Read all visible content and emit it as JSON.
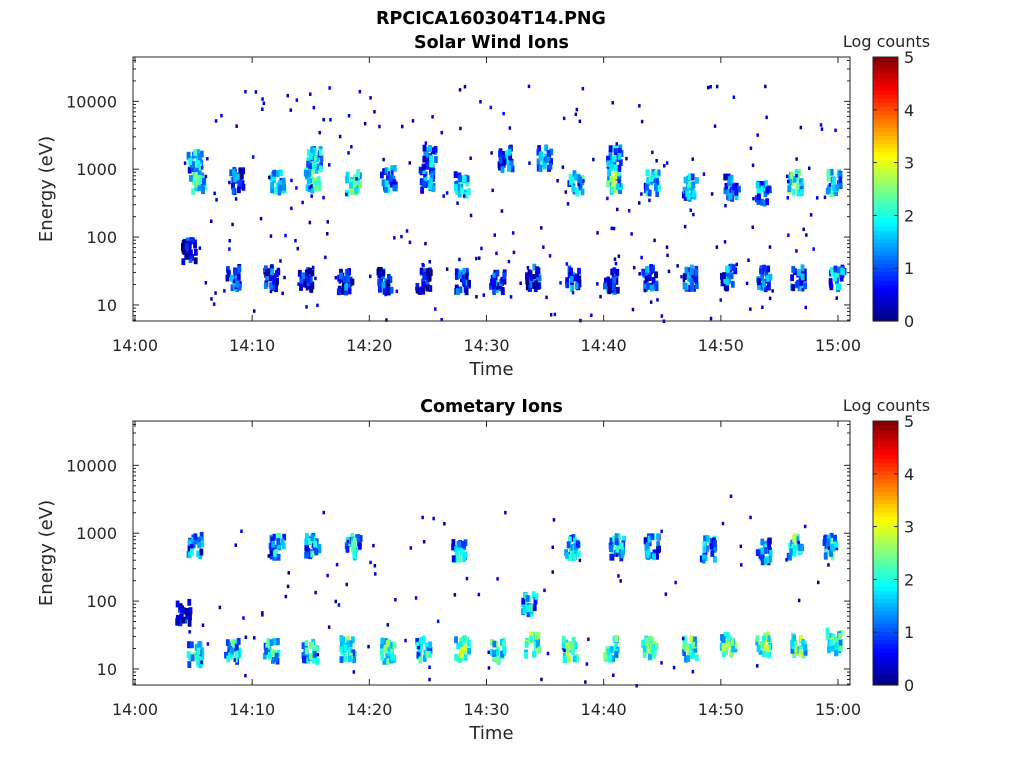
{
  "figure": {
    "title": "RPCICA160304T14.PNG"
  },
  "chart_data": [
    {
      "type": "heatmap",
      "title": "Solar Wind Ions",
      "xlabel": "Time",
      "ylabel": "Energy (eV)",
      "x_ticks": [
        "14:00",
        "14:10",
        "14:20",
        "14:30",
        "14:40",
        "14:50",
        "15:00"
      ],
      "x_range_minutes": [
        0,
        61
      ],
      "y_scale": "log",
      "y_ticks": [
        10,
        100,
        1000,
        10000
      ],
      "y_tick_labels": [
        "10",
        "100",
        "1000",
        "10000"
      ],
      "y_range": [
        5.8,
        45000
      ],
      "colorbar": {
        "label": "Log counts",
        "range": [
          0,
          5
        ],
        "ticks": [
          "0",
          "1",
          "2",
          "3",
          "4",
          "5"
        ],
        "colormap": "jet"
      },
      "clusters": [
        {
          "t": 5.2,
          "e": 700,
          "v": 2.2
        },
        {
          "t": 5.0,
          "e": 1500,
          "v": 1.6
        },
        {
          "t": 8.5,
          "e": 750,
          "v": 1.0
        },
        {
          "t": 12.0,
          "e": 700,
          "v": 1.8
        },
        {
          "t": 15.0,
          "e": 750,
          "v": 2.3
        },
        {
          "t": 15.2,
          "e": 1600,
          "v": 1.8
        },
        {
          "t": 18.5,
          "e": 700,
          "v": 2.4
        },
        {
          "t": 21.5,
          "e": 800,
          "v": 1.2
        },
        {
          "t": 24.8,
          "e": 750,
          "v": 1.3
        },
        {
          "t": 25.0,
          "e": 1600,
          "v": 1.5
        },
        {
          "t": 27.8,
          "e": 650,
          "v": 1.8
        },
        {
          "t": 31.5,
          "e": 1600,
          "v": 1.2
        },
        {
          "t": 34.8,
          "e": 1600,
          "v": 1.5
        },
        {
          "t": 37.5,
          "e": 700,
          "v": 2.0
        },
        {
          "t": 40.8,
          "e": 750,
          "v": 2.2
        },
        {
          "t": 40.8,
          "e": 1600,
          "v": 1.6
        },
        {
          "t": 44.0,
          "e": 700,
          "v": 1.8
        },
        {
          "t": 47.2,
          "e": 600,
          "v": 1.6
        },
        {
          "t": 50.8,
          "e": 600,
          "v": 1.2
        },
        {
          "t": 53.5,
          "e": 500,
          "v": 1.6
        },
        {
          "t": 56.2,
          "e": 700,
          "v": 2.3
        },
        {
          "t": 59.5,
          "e": 700,
          "v": 2.0
        },
        {
          "t": 4.5,
          "e": 70,
          "v": 0.6
        },
        {
          "t": 8.3,
          "e": 28,
          "v": 1.0
        },
        {
          "t": 11.5,
          "e": 28,
          "v": 0.9
        },
        {
          "t": 14.5,
          "e": 25,
          "v": 0.9
        },
        {
          "t": 17.8,
          "e": 25,
          "v": 0.8
        },
        {
          "t": 21.2,
          "e": 25,
          "v": 0.8
        },
        {
          "t": 24.5,
          "e": 25,
          "v": 0.8
        },
        {
          "t": 27.8,
          "e": 25,
          "v": 0.9
        },
        {
          "t": 30.8,
          "e": 25,
          "v": 0.9
        },
        {
          "t": 33.8,
          "e": 28,
          "v": 0.9
        },
        {
          "t": 37.2,
          "e": 28,
          "v": 1.0
        },
        {
          "t": 40.5,
          "e": 25,
          "v": 0.9
        },
        {
          "t": 43.8,
          "e": 28,
          "v": 1.1
        },
        {
          "t": 47.2,
          "e": 28,
          "v": 1.2
        },
        {
          "t": 50.5,
          "e": 28,
          "v": 1.2
        },
        {
          "t": 53.5,
          "e": 28,
          "v": 1.3
        },
        {
          "t": 56.5,
          "e": 28,
          "v": 1.2
        },
        {
          "t": 59.8,
          "e": 28,
          "v": 1.6
        }
      ]
    },
    {
      "type": "heatmap",
      "title": "Cometary Ions",
      "xlabel": "Time",
      "ylabel": "Energy (eV)",
      "x_ticks": [
        "14:00",
        "14:10",
        "14:20",
        "14:30",
        "14:40",
        "14:50",
        "15:00"
      ],
      "x_range_minutes": [
        0,
        61
      ],
      "y_scale": "log",
      "y_ticks": [
        10,
        100,
        1000,
        10000
      ],
      "y_tick_labels": [
        "10",
        "100",
        "1000",
        "10000"
      ],
      "y_range": [
        5.8,
        45000
      ],
      "colorbar": {
        "label": "Log counts",
        "range": [
          0,
          5
        ],
        "ticks": [
          "0",
          "1",
          "2",
          "3",
          "4",
          "5"
        ],
        "colormap": "jet"
      },
      "clusters": [
        {
          "t": 5.0,
          "e": 18,
          "v": 1.8
        },
        {
          "t": 8.2,
          "e": 20,
          "v": 1.8
        },
        {
          "t": 11.5,
          "e": 20,
          "v": 1.9
        },
        {
          "t": 14.8,
          "e": 20,
          "v": 1.9
        },
        {
          "t": 18.0,
          "e": 22,
          "v": 2.1
        },
        {
          "t": 21.5,
          "e": 20,
          "v": 2.1
        },
        {
          "t": 24.5,
          "e": 22,
          "v": 2.0
        },
        {
          "t": 27.8,
          "e": 22,
          "v": 2.3
        },
        {
          "t": 30.8,
          "e": 20,
          "v": 2.2
        },
        {
          "t": 33.8,
          "e": 25,
          "v": 2.5
        },
        {
          "t": 33.5,
          "e": 100,
          "v": 1.7
        },
        {
          "t": 37.0,
          "e": 22,
          "v": 2.3
        },
        {
          "t": 40.5,
          "e": 22,
          "v": 2.2
        },
        {
          "t": 43.8,
          "e": 22,
          "v": 2.3
        },
        {
          "t": 47.2,
          "e": 22,
          "v": 2.2
        },
        {
          "t": 50.5,
          "e": 25,
          "v": 2.4
        },
        {
          "t": 53.5,
          "e": 25,
          "v": 2.5
        },
        {
          "t": 56.5,
          "e": 25,
          "v": 2.4
        },
        {
          "t": 59.5,
          "e": 28,
          "v": 2.3
        },
        {
          "t": 5.0,
          "e": 750,
          "v": 1.4
        },
        {
          "t": 12.0,
          "e": 700,
          "v": 1.5
        },
        {
          "t": 15.0,
          "e": 750,
          "v": 1.6
        },
        {
          "t": 18.5,
          "e": 700,
          "v": 1.8
        },
        {
          "t": 27.5,
          "e": 650,
          "v": 1.5
        },
        {
          "t": 37.2,
          "e": 700,
          "v": 1.6
        },
        {
          "t": 41.0,
          "e": 700,
          "v": 1.7
        },
        {
          "t": 44.0,
          "e": 700,
          "v": 1.4
        },
        {
          "t": 48.8,
          "e": 650,
          "v": 1.6
        },
        {
          "t": 53.5,
          "e": 600,
          "v": 1.5
        },
        {
          "t": 56.2,
          "e": 700,
          "v": 2.2
        },
        {
          "t": 59.2,
          "e": 700,
          "v": 1.8
        },
        {
          "t": 4.0,
          "e": 75,
          "v": 0.5
        }
      ]
    }
  ]
}
